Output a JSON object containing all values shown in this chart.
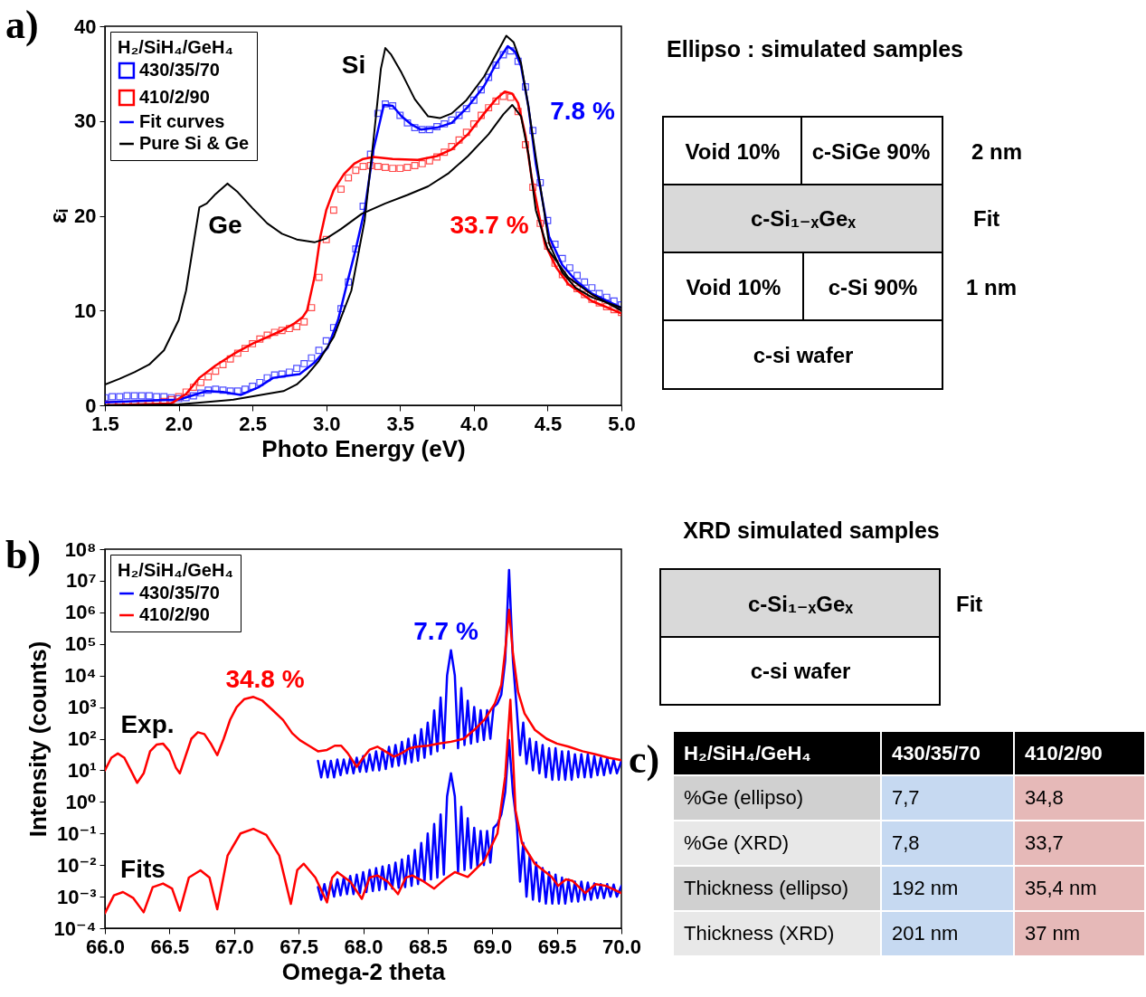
{
  "chart_data": [
    {
      "type": "line",
      "xlabel": "Photo Energy (eV)",
      "ylabel": "εᵢ",
      "legend_title": "H₂/SiH₄/GeH₄",
      "legend": "top left",
      "xlim": [
        1.5,
        5.0
      ],
      "xticks": [
        1.5,
        {
          "value": 2,
          "label": "2.0"
        },
        2.5,
        {
          "value": 3,
          "label": "3.0"
        },
        3.5,
        {
          "value": 4,
          "label": "4.0"
        },
        4.5,
        {
          "value": 5,
          "label": "5.0"
        }
      ],
      "ylim": [
        0,
        40
      ],
      "yticks": [
        0,
        10,
        20,
        30,
        40
      ],
      "x": [
        1.5,
        1.55,
        1.6,
        1.65,
        1.7,
        1.75,
        1.8,
        1.85,
        1.9,
        1.95,
        2.0,
        2.05,
        2.1,
        2.15,
        2.2,
        2.25,
        2.3,
        2.35,
        2.4,
        2.45,
        2.5,
        2.55,
        2.6,
        2.65,
        2.7,
        2.75,
        2.8,
        2.85,
        2.9,
        2.95,
        3.0,
        3.05,
        3.1,
        3.15,
        3.2,
        3.25,
        3.3,
        3.35,
        3.4,
        3.45,
        3.5,
        3.55,
        3.6,
        3.65,
        3.7,
        3.75,
        3.8,
        3.85,
        3.9,
        3.95,
        4.0,
        4.05,
        4.1,
        4.15,
        4.2,
        4.25,
        4.3,
        4.35,
        4.4,
        4.45,
        4.5,
        4.55,
        4.6,
        4.65,
        4.7,
        4.75,
        4.8,
        4.85,
        4.9,
        4.95,
        5.0
      ],
      "series": [
        {
          "name": "430/35/70",
          "type": "scatter",
          "marker": "square",
          "color": "#0000ff",
          "values": [
            0.8,
            0.9,
            0.9,
            1.0,
            1.0,
            1.0,
            1.0,
            0.9,
            0.9,
            0.8,
            0.7,
            0.8,
            1.0,
            1.3,
            1.6,
            1.7,
            1.6,
            1.5,
            1.5,
            1.7,
            2.0,
            2.4,
            2.9,
            3.2,
            3.3,
            3.5,
            3.9,
            4.4,
            5.0,
            5.8,
            6.8,
            8.2,
            10.2,
            13.0,
            16.5,
            21.0,
            26.5,
            30.8,
            31.8,
            31.6,
            30.6,
            29.8,
            29.3,
            29.1,
            29.1,
            29.4,
            29.7,
            30.1,
            30.6,
            31.3,
            32.2,
            33.3,
            34.6,
            35.9,
            37.0,
            37.4,
            36.3,
            33.6,
            29.0,
            23.5,
            19.5,
            17.0,
            15.5,
            14.5,
            13.7,
            13.0,
            12.4,
            11.8,
            11.4,
            11.0,
            10.6
          ]
        },
        {
          "name": "410/2/90",
          "type": "scatter",
          "marker": "square",
          "color": "#ff0000",
          "values": [
            0.1,
            0.1,
            0.1,
            0.1,
            0.1,
            0.1,
            0.1,
            0.2,
            0.4,
            0.6,
            0.9,
            1.4,
            1.9,
            2.4,
            3.0,
            3.6,
            4.3,
            4.9,
            5.5,
            6.0,
            6.5,
            7.0,
            7.4,
            7.7,
            7.9,
            8.1,
            8.3,
            8.8,
            10.3,
            13.5,
            17.5,
            20.6,
            22.8,
            24.0,
            24.8,
            25.2,
            25.3,
            25.2,
            25.1,
            25.0,
            25.0,
            25.1,
            25.3,
            25.5,
            25.8,
            26.2,
            26.7,
            27.3,
            28.0,
            28.8,
            29.7,
            30.6,
            31.4,
            32.1,
            32.6,
            32.5,
            31.0,
            27.5,
            23.0,
            19.2,
            16.8,
            15.0,
            13.8,
            13.0,
            12.3,
            11.7,
            11.2,
            10.8,
            10.4,
            10.1,
            9.8
          ]
        },
        {
          "name": "Fit curves",
          "color": "#0000ff",
          "x": [
            1.5,
            1.8,
            2.0,
            2.19,
            2.3,
            2.42,
            2.54,
            2.64,
            2.73,
            2.82,
            2.92,
            3.01,
            3.08,
            3.14,
            3.2,
            3.26,
            3.32,
            3.39,
            3.45,
            3.51,
            3.58,
            3.64,
            3.75,
            3.85,
            3.96,
            4.07,
            4.15,
            4.23,
            4.28,
            4.32,
            4.37,
            4.42,
            4.51,
            4.6,
            4.69,
            4.8,
            5.0
          ],
          "values": [
            0.3,
            0.5,
            0.6,
            1.5,
            1.4,
            1.1,
            1.9,
            2.9,
            3.1,
            3.3,
            4.5,
            6.1,
            9,
            12.8,
            16.5,
            20.6,
            27.0,
            31.7,
            31.6,
            30.5,
            29.6,
            29.1,
            29.3,
            29.8,
            31.5,
            33.7,
            36.0,
            37.9,
            37.3,
            35.8,
            31.5,
            25.5,
            17.8,
            14.8,
            13.2,
            11.8,
            10.3
          ]
        },
        {
          "color": "#ff0000",
          "x": [
            1.5,
            1.95,
            2.05,
            2.14,
            2.25,
            2.37,
            2.5,
            2.6,
            2.7,
            2.78,
            2.84,
            2.87,
            2.92,
            2.96,
            3.0,
            3.05,
            3.12,
            3.19,
            3.25,
            3.32,
            3.45,
            3.62,
            3.75,
            3.85,
            3.96,
            4.07,
            4.15,
            4.21,
            4.26,
            4.3,
            4.35,
            4.39,
            4.48,
            4.56,
            4.64,
            4.8,
            5.0
          ],
          "values": [
            0.0,
            0.2,
            1.2,
            2.9,
            4.2,
            5.4,
            6.5,
            7.2,
            7.9,
            8.6,
            9.3,
            10.0,
            13.5,
            17.8,
            20.6,
            22.7,
            24.4,
            25.5,
            26.0,
            26.2,
            26.0,
            25.9,
            26.3,
            27.0,
            28.6,
            30.8,
            32.3,
            33.1,
            32.9,
            31.9,
            28.5,
            24.2,
            17.1,
            14.5,
            12.8,
            11.0,
            9.7
          ]
        },
        {
          "name": "Pure Si & Ge",
          "color": "#000000",
          "x": [
            1.5,
            2.0,
            2.37,
            2.71,
            2.8,
            2.87,
            2.95,
            3.05,
            3.17,
            3.26,
            3.32,
            3.37,
            3.4,
            3.44,
            3.51,
            3.6,
            3.69,
            3.77,
            3.85,
            3.95,
            4.07,
            4.15,
            4.22,
            4.27,
            4.32,
            4.37,
            4.42,
            4.51,
            4.6,
            4.69,
            4.8,
            5.0
          ],
          "values": [
            0.0,
            0.1,
            0.6,
            1.5,
            2.2,
            3.2,
            4.7,
            7.2,
            12.1,
            19.5,
            28.0,
            35.5,
            37.7,
            37.0,
            35.1,
            32.3,
            30.5,
            30.3,
            30.8,
            32.2,
            34.7,
            37.0,
            39.0,
            38.3,
            36.1,
            31.5,
            26.2,
            17.1,
            14.0,
            12.4,
            11.4,
            10.3
          ]
        },
        {
          "color": "#000000",
          "x": [
            1.5,
            1.6,
            1.7,
            1.8,
            1.9,
            2.0,
            2.05,
            2.1,
            2.14,
            2.19,
            2.25,
            2.33,
            2.4,
            2.5,
            2.6,
            2.7,
            2.8,
            2.92,
            3.0,
            3.1,
            3.24,
            3.4,
            3.55,
            3.69,
            3.83,
            3.96,
            4.1,
            4.2,
            4.26,
            4.32,
            4.37,
            4.42,
            4.5,
            4.64,
            4.8,
            5.0
          ],
          "values": [
            2.2,
            2.8,
            3.5,
            4.3,
            5.8,
            9.0,
            12.1,
            17,
            20.9,
            21.3,
            22.3,
            23.4,
            22.5,
            20.8,
            19.2,
            18.1,
            17.5,
            17.2,
            17.6,
            18.6,
            20.2,
            21.3,
            22.2,
            23.1,
            24.5,
            26.3,
            28.6,
            30.7,
            31.7,
            30.5,
            26.5,
            20.6,
            16.5,
            13.5,
            11.7,
            10.0
          ]
        }
      ],
      "annotations": [
        "a)",
        "Si",
        "Ge",
        "7.8 %",
        "33.7 %"
      ]
    },
    {
      "type": "other",
      "title": "Ellipso : simulated samples",
      "annotations": [
        "Void 10%",
        "c-SiGe 90%",
        "2 nm",
        "c-Si₁₋ₓGeₓ",
        "Fit",
        "Void 10%",
        "c-Si 90%",
        "1 nm",
        "c-si wafer"
      ]
    },
    {
      "type": "line",
      "xlabel": "Omega-2 theta",
      "ylabel": "Intensity (counts)",
      "legend_title": "H₂/SiH₄/GeH₄",
      "legend": "top left",
      "log": "y",
      "xlim": [
        66,
        70
      ],
      "xticks": [
        {
          "value": 66,
          "label": "66.0"
        },
        66.5,
        {
          "value": 67,
          "label": "67.0"
        },
        67.5,
        {
          "value": 68,
          "label": "68.0"
        },
        68.5,
        {
          "value": 69,
          "label": "69.0"
        },
        69.5,
        {
          "value": 70,
          "label": "70.0"
        }
      ],
      "ylim": [
        0.0001,
        100000000
      ],
      "yticks": [
        {
          "value": 0.0001,
          "label": "10⁻⁴"
        },
        {
          "value": 0.001,
          "label": "10⁻³"
        },
        {
          "value": 0.01,
          "label": "10⁻²"
        },
        {
          "value": 0.1,
          "label": "10⁻¹"
        },
        {
          "value": 1,
          "label": "10⁰"
        },
        {
          "value": 10,
          "label": "10¹"
        },
        {
          "value": 100,
          "label": "10²"
        },
        {
          "value": 1000,
          "label": "10³"
        },
        {
          "value": 10000,
          "label": "10⁴"
        },
        {
          "value": 100000,
          "label": "10⁵"
        },
        {
          "value": 1000000,
          "label": "10⁶"
        },
        {
          "value": 10000000,
          "label": "10⁷"
        },
        {
          "value": 100000000,
          "label": "10⁸"
        }
      ],
      "x": [
        67.65,
        67.675,
        67.7,
        67.725,
        67.75,
        67.775,
        67.8,
        67.825,
        67.85,
        67.875,
        67.9,
        67.925,
        67.95,
        67.975,
        68.0,
        68.025,
        68.05,
        68.075,
        68.1,
        68.125,
        68.15,
        68.175,
        68.2,
        68.225,
        68.25,
        68.275,
        68.3,
        68.325,
        68.35,
        68.375,
        68.4,
        68.425,
        68.45,
        68.475,
        68.5,
        68.525,
        68.55,
        68.575,
        68.6,
        68.625,
        68.65,
        68.68,
        68.71,
        68.735,
        68.76,
        68.785,
        68.81,
        68.835,
        68.86,
        68.885,
        68.91,
        68.935,
        68.96,
        68.985,
        69.01,
        69.04,
        69.07,
        69.1,
        69.13,
        69.16,
        69.19,
        69.215,
        69.24,
        69.265,
        69.29,
        69.315,
        69.34,
        69.365,
        69.39,
        69.415,
        69.44,
        69.465,
        69.49,
        69.515,
        69.54,
        69.565,
        69.59,
        69.615,
        69.64,
        69.665,
        69.69,
        69.715,
        69.74,
        69.765,
        69.79,
        69.815,
        69.84,
        69.865,
        69.89,
        69.915,
        69.94,
        69.965,
        70.0
      ],
      "series": [
        {
          "name": "430/35/70",
          "color": "#0000ff",
          "values": [
            20,
            6,
            20,
            6,
            20,
            6,
            22,
            7,
            22,
            8,
            25,
            8,
            25,
            9,
            28,
            9,
            32,
            10,
            40,
            10,
            45,
            11,
            55,
            13,
            63,
            14,
            79,
            16,
            100,
            18,
            130,
            20,
            200,
            25,
            320,
            32,
            790,
            40,
            2000,
            50,
            10000,
            63000,
            10000,
            50,
            4000,
            63,
            1600,
            70,
            1000,
            79,
            800,
            90,
            800,
            100,
            1000,
            1300,
            2500,
            30000,
            22000000,
            30000,
            800,
            30,
            320,
            16,
            100,
            10,
            80,
            8,
            63,
            6,
            50,
            5,
            50,
            5,
            40,
            5,
            40,
            5,
            32,
            6,
            32,
            6,
            32,
            6,
            28,
            7,
            25,
            7,
            25,
            8,
            22,
            8,
            20
          ]
        },
        {
          "name": "410/2/90",
          "color": "#ff0000",
          "x": [
            66.0,
            66.05,
            66.1,
            66.15,
            66.2,
            66.25,
            66.3,
            66.35,
            66.4,
            66.45,
            66.5,
            66.55,
            66.58,
            66.62,
            66.67,
            66.72,
            66.77,
            66.82,
            66.87,
            66.92,
            66.97,
            67.02,
            67.08,
            67.15,
            67.22,
            67.3,
            67.38,
            67.45,
            67.51,
            67.58,
            67.65,
            67.72,
            67.78,
            67.83,
            67.88,
            67.95,
            68.0,
            68.05,
            68.11,
            68.17,
            68.24,
            68.3,
            68.36,
            68.42,
            68.5,
            68.58,
            68.68,
            68.78,
            68.86,
            68.94,
            69.02,
            69.07,
            69.1,
            69.13,
            69.16,
            69.2,
            69.25,
            69.33,
            69.42,
            69.5,
            69.59,
            69.7,
            69.8,
            69.9,
            70.0
          ],
          "values": [
            10,
            25,
            34,
            25,
            10,
            4,
            8,
            40,
            65,
            70,
            40,
            12,
            8,
            25,
            100,
            160,
            140,
            70,
            30,
            100,
            400,
            1000,
            1800,
            2100,
            1600,
            800,
            390,
            150,
            90,
            60,
            40,
            44,
            60,
            60,
            35,
            13,
            25,
            45,
            56,
            40,
            27,
            35,
            50,
            56,
            60,
            70,
            80,
            100,
            190,
            400,
            1300,
            5000,
            60000,
            1200000,
            50000,
            3000,
            630,
            190,
            100,
            70,
            56,
            40,
            32,
            25,
            21
          ]
        },
        {
          "color": "#0000ff",
          "values": [
            0.002,
            0.0008,
            0.0025,
            0.0009,
            0.003,
            0.001,
            0.0035,
            0.0011,
            0.004,
            0.0012,
            0.0045,
            0.0012,
            0.005,
            0.0013,
            0.006,
            0.0014,
            0.007,
            0.0015,
            0.008,
            0.0016,
            0.009,
            0.0017,
            0.01,
            0.0018,
            0.012,
            0.0019,
            0.015,
            0.002,
            0.02,
            0.0022,
            0.03,
            0.0025,
            0.05,
            0.003,
            0.1,
            0.0035,
            0.2,
            0.004,
            0.4,
            0.005,
            1.5,
            8,
            1.5,
            0.006,
            0.7,
            0.007,
            0.3,
            0.008,
            0.15,
            0.009,
            0.12,
            0.01,
            0.12,
            0.012,
            0.15,
            0.2,
            0.4,
            2,
            90,
            2,
            0.2,
            0.003,
            0.05,
            0.001,
            0.02,
            0.0008,
            0.012,
            0.0007,
            0.008,
            0.0006,
            0.006,
            0.0006,
            0.005,
            0.0006,
            0.004,
            0.0006,
            0.0035,
            0.0007,
            0.003,
            0.0007,
            0.003,
            0.0008,
            0.0028,
            0.0008,
            0.0026,
            0.0009,
            0.0025,
            0.0009,
            0.0025,
            0.001,
            0.0024,
            0.001,
            0.0022
          ]
        },
        {
          "color": "#ff0000",
          "x": [
            66.0,
            66.07,
            66.14,
            66.22,
            66.3,
            66.37,
            66.45,
            66.52,
            66.58,
            66.65,
            66.74,
            66.81,
            66.87,
            66.95,
            67.05,
            67.15,
            67.25,
            67.35,
            67.44,
            67.49,
            67.54,
            67.63,
            67.72,
            67.76,
            67.8,
            67.9,
            67.99,
            68.05,
            68.11,
            68.19,
            68.27,
            68.33,
            68.38,
            68.47,
            68.55,
            68.63,
            68.71,
            68.76,
            68.81,
            68.94,
            69.04,
            69.1,
            69.14,
            69.18,
            69.23,
            69.33,
            69.46,
            69.51,
            69.57,
            69.62,
            69.72,
            69.8,
            69.88,
            70.0
          ],
          "values": [
            0.0003,
            0.0011,
            0.0014,
            0.0009,
            0.00032,
            0.002,
            0.0026,
            0.0018,
            0.00036,
            0.004,
            0.0068,
            0.004,
            0.0004,
            0.02,
            0.1,
            0.14,
            0.09,
            0.02,
            0.00059,
            0.007,
            0.011,
            0.004,
            0.00066,
            0.004,
            0.006,
            0.003,
            0.00085,
            0.004,
            0.0047,
            0.003,
            0.0012,
            0.004,
            0.0047,
            0.003,
            0.0018,
            0.0035,
            0.006,
            0.005,
            0.0042,
            0.014,
            0.1,
            6.3,
            1700,
            0.54,
            0.05,
            0.011,
            0.0042,
            0.0022,
            0.0035,
            0.0032,
            0.0013,
            0.0025,
            0.0022,
            0.0013
          ]
        }
      ],
      "annotations": [
        "b)",
        "Exp.",
        "Fits",
        "34.8 %",
        "7.7 %"
      ]
    },
    {
      "type": "other",
      "title": "XRD simulated samples",
      "annotations": [
        "c-Si₁₋ₓGeₓ",
        "Fit",
        "c-si wafer"
      ]
    },
    {
      "type": "other",
      "annotations": [
        "c)",
        "H₂/SiH₄/GeH₄",
        "430/35/70",
        "410/2/90",
        "%Ge (ellipso)",
        "7,7",
        "34,8",
        "%Ge (XRD)",
        "7,8",
        "33,7",
        "Thickness (ellipso)",
        "192 nm",
        "35,4 nm",
        "Thickness (XRD)",
        "201 nm",
        "37 nm"
      ]
    }
  ]
}
